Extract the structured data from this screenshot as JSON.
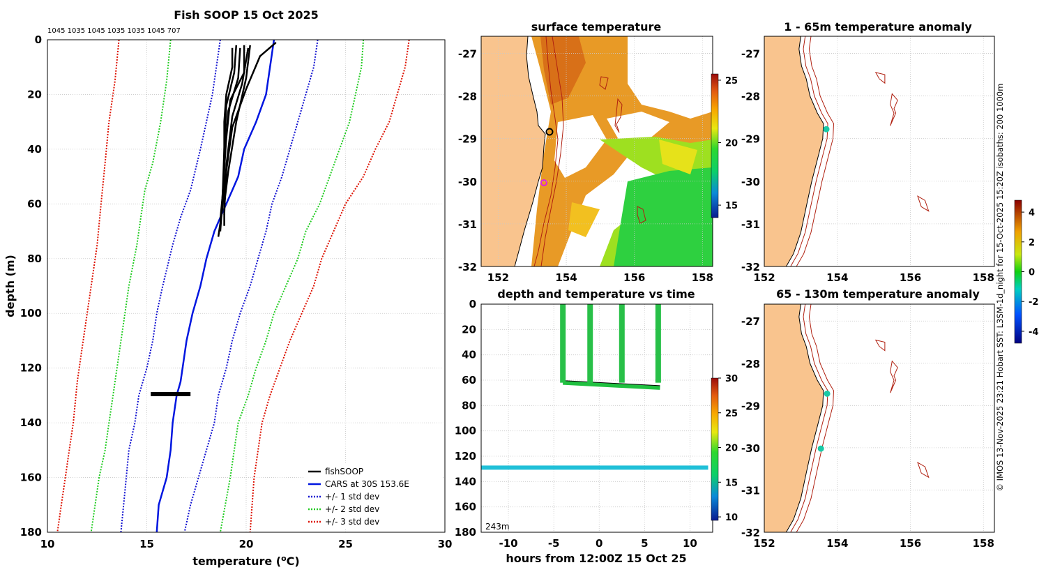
{
  "figure": {
    "credit": "© IMOS 13-Nov-2025 23:21 Hobart SST: L3SM-1d_night for 15-Oct-2025 15:20Z isobaths: 200  1000m",
    "colors": {
      "land": "#f9c48e",
      "fishsoop": "#000000",
      "cars": "#0016e0",
      "std1": "#1010d0",
      "std2": "#22cc22",
      "std3": "#dd1100",
      "isobath": "#b02010",
      "grid": "#c8c8c8",
      "cyan_marker": "#19c9a6"
    }
  },
  "chart_data": [
    {
      "id": "profile",
      "type": "line",
      "title": "Fish SOOP 15 Oct 2025",
      "profile_ids": "1045 1035 1045 1035 1035 1045 707",
      "xlabel": "temperature (",
      "xlabel_unit": "o",
      "xlabel_end": "C)",
      "ylabel": "depth (m)",
      "xlim": [
        10,
        30
      ],
      "ylim": [
        0,
        180
      ],
      "y_inverted": true,
      "xticks": [
        "10",
        "15",
        "20",
        "25",
        "30"
      ],
      "yticks": [
        "0",
        "20",
        "40",
        "60",
        "80",
        "100",
        "120",
        "140",
        "160",
        "180"
      ],
      "grid": true,
      "legend_position": "bottom-right",
      "series": [
        {
          "name": "fishSOOP",
          "style": "solid",
          "color": "#000000",
          "profiles": [
            [
              [
                19.3,
                3
              ],
              [
                19.3,
                10
              ],
              [
                19.0,
                20
              ],
              [
                18.9,
                30
              ],
              [
                18.9,
                50
              ],
              [
                18.9,
                68
              ]
            ],
            [
              [
                19.5,
                2
              ],
              [
                19.4,
                12
              ],
              [
                19.0,
                24
              ],
              [
                18.9,
                40
              ],
              [
                18.8,
                60
              ],
              [
                18.7,
                70
              ]
            ],
            [
              [
                19.7,
                3
              ],
              [
                19.6,
                14
              ],
              [
                19.1,
                26
              ],
              [
                18.9,
                44
              ],
              [
                18.8,
                62
              ],
              [
                18.6,
                72
              ]
            ],
            [
              [
                19.9,
                2
              ],
              [
                19.9,
                12
              ],
              [
                19.2,
                22
              ],
              [
                19.0,
                36
              ],
              [
                18.8,
                58
              ],
              [
                18.7,
                66
              ]
            ],
            [
              [
                20.1,
                3
              ],
              [
                19.8,
                16
              ],
              [
                19.3,
                28
              ],
              [
                19.0,
                46
              ],
              [
                18.9,
                64
              ]
            ],
            [
              [
                20.2,
                2
              ],
              [
                20.0,
                14
              ],
              [
                19.5,
                30
              ],
              [
                19.1,
                48
              ],
              [
                18.9,
                60
              ]
            ],
            [
              [
                21.5,
                1
              ],
              [
                20.7,
                6
              ],
              [
                20.0,
                18
              ],
              [
                19.3,
                32
              ],
              [
                19.0,
                48
              ],
              [
                18.9,
                62
              ]
            ]
          ],
          "blob": {
            "t_min": 15.2,
            "t_max": 17.2,
            "depth": 129.5
          }
        },
        {
          "name": "CARS at 30S 153.6E",
          "style": "solid",
          "color": "#0016e0",
          "x": [
            21.4,
            21.2,
            21.0,
            20.5,
            19.9,
            19.6,
            19.3,
            19.0,
            18.7,
            18.4,
            18.0,
            17.7,
            17.3,
            17.0,
            16.8,
            16.7,
            16.5,
            16.3,
            16.2,
            16.0,
            15.8,
            15.6,
            15.5
          ],
          "y": [
            0,
            10,
            20,
            30,
            40,
            50,
            55,
            60,
            65,
            70,
            80,
            90,
            100,
            110,
            120,
            125,
            130,
            140,
            150,
            160,
            165,
            170,
            180
          ]
        },
        {
          "name": "+/- 1 std dev",
          "style": "dotted",
          "color": "#1010d0",
          "lower": {
            "x": [
              18.7,
              18.3,
              17.7,
              17.2,
              16.7,
              16.3,
              15.8,
              15.5,
              15.3,
              15.0,
              14.6,
              14.4,
              14.1,
              13.9,
              13.7
            ],
            "y": [
              0,
              20,
              40,
              55,
              65,
              75,
              90,
              100,
              110,
              120,
              130,
              140,
              150,
              165,
              180
            ]
          },
          "upper": {
            "x": [
              23.6,
              23.4,
              23.0,
              22.6,
              22.2,
              21.8,
              21.3,
              21.0,
              20.6,
              20.2,
              19.7,
              19.3,
              19.0,
              18.6,
              18.4,
              18.0,
              17.6,
              17.2,
              16.9
            ],
            "y": [
              0,
              10,
              20,
              30,
              40,
              50,
              60,
              70,
              80,
              90,
              100,
              110,
              120,
              130,
              140,
              150,
              160,
              170,
              180
            ]
          }
        },
        {
          "name": "+/- 2 std dev",
          "style": "dotted",
          "color": "#22cc22",
          "lower": {
            "x": [
              16.2,
              16.0,
              15.7,
              15.3,
              14.9,
              14.7,
              14.5,
              14.1,
              13.9,
              13.6,
              13.3,
              13.1,
              12.9,
              12.6,
              12.4,
              12.2
            ],
            "y": [
              0,
              15,
              30,
              45,
              55,
              65,
              75,
              90,
              100,
              115,
              130,
              140,
              150,
              160,
              170,
              180
            ]
          },
          "upper": {
            "x": [
              25.9,
              25.8,
              25.5,
              25.2,
              24.7,
              24.2,
              23.7,
              23.0,
              22.6,
              22.0,
              21.4,
              21.0,
              20.5,
              20.1,
              19.6,
              19.2,
              18.7
            ],
            "y": [
              0,
              10,
              20,
              30,
              40,
              50,
              60,
              70,
              80,
              90,
              100,
              110,
              120,
              130,
              140,
              160,
              180
            ]
          }
        },
        {
          "name": "+/- 3 std dev",
          "style": "dotted",
          "color": "#dd1100",
          "lower": {
            "x": [
              13.6,
              13.4,
              13.1,
              12.9,
              12.7,
              12.5,
              12.3,
              12.0,
              11.7,
              11.5,
              11.3,
              11.1,
              10.9,
              10.7,
              10.5
            ],
            "y": [
              0,
              15,
              30,
              45,
              60,
              75,
              85,
              100,
              115,
              125,
              140,
              150,
              160,
              170,
              180
            ]
          },
          "upper": {
            "x": [
              28.2,
              28.0,
              27.6,
              27.2,
              26.5,
              25.9,
              25.0,
              24.4,
              23.8,
              23.4,
              22.8,
              22.2,
              21.7,
              21.2,
              20.8,
              20.4,
              20.2
            ],
            "y": [
              0,
              10,
              20,
              30,
              40,
              50,
              60,
              70,
              80,
              90,
              100,
              110,
              120,
              130,
              140,
              160,
              180
            ]
          }
        }
      ]
    },
    {
      "id": "sst",
      "type": "heatmap",
      "title": "surface temperature",
      "xticks": [
        "152",
        "154",
        "156",
        "158"
      ],
      "yticks": [
        "-27",
        "-28",
        "-29",
        "-30",
        "-31",
        "-32"
      ],
      "colorbar_ticks": [
        "25",
        "20",
        "15"
      ],
      "colorbar_range": [
        14,
        25.5
      ]
    },
    {
      "id": "timeseries",
      "type": "scatter",
      "title": "depth and temperature vs time",
      "xlabel": "hours from 12:00Z 15 Oct 25",
      "xlim": [
        -13,
        12.5
      ],
      "ylim": [
        0,
        180
      ],
      "xticks": [
        "-10",
        "-5",
        "0",
        "5",
        "10"
      ],
      "yticks": [
        "0",
        "20",
        "40",
        "60",
        "80",
        "100",
        "120",
        "140",
        "160",
        "180"
      ],
      "corner_label": "243m",
      "colorbar_ticks": [
        "30",
        "25",
        "20",
        "15",
        "10"
      ],
      "colorbar_range": [
        9.5,
        30
      ],
      "descents_hours": [
        -4.0,
        -1.0,
        2.5,
        6.5
      ],
      "shallow_line": {
        "x_start": -4,
        "x_end": 6.7,
        "depth_start": 62,
        "depth_end": 66,
        "temp_c": 19.5
      },
      "deep_line": {
        "x_start": -13,
        "x_end": 12,
        "depth": 129,
        "temp_c": 17.0
      }
    },
    {
      "id": "anom1",
      "type": "heatmap",
      "title": "1 - 65m temperature anomaly",
      "xticks": [
        "152",
        "154",
        "156",
        "158"
      ],
      "yticks": [
        "-27",
        "-28",
        "-29",
        "-30",
        "-31",
        "-32"
      ],
      "markers": [
        {
          "lon": 153.7,
          "lat": -28.78
        }
      ]
    },
    {
      "id": "anom2",
      "type": "heatmap",
      "title": "65 - 130m temperature anomaly",
      "xticks": [
        "152",
        "154",
        "156",
        "158"
      ],
      "yticks": [
        "-27",
        "-28",
        "-29",
        "-30",
        "-31",
        "-32"
      ],
      "markers": [
        {
          "lon": 153.72,
          "lat": -28.72
        },
        {
          "lon": 153.55,
          "lat": -30.02
        }
      ],
      "colorbar_ticks": [
        "4",
        "2",
        "0",
        "-2",
        "-4"
      ],
      "colorbar_range": [
        -4.8,
        4.8
      ]
    }
  ]
}
